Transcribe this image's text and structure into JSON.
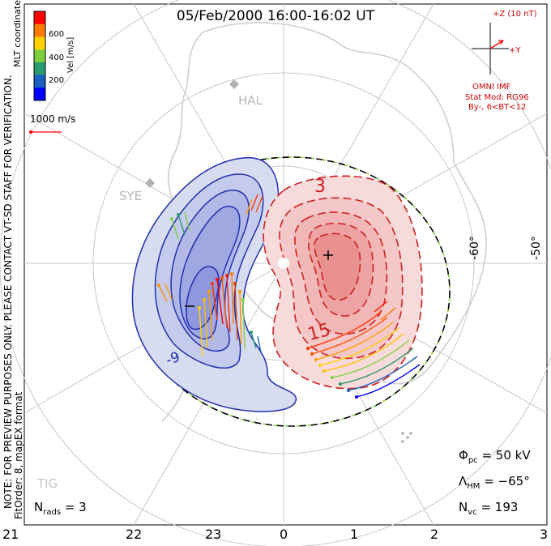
{
  "title": "05/Feb/2000 16:00-16:02 UT",
  "colorbar": {
    "label": "Vel [m/s]",
    "ticks": [
      "600",
      "400",
      "200"
    ],
    "colors": [
      "#ff0000",
      "#ff7a00",
      "#ffd000",
      "#7fd040",
      "#2a9a70",
      "#1a60c0",
      "#0000ff"
    ]
  },
  "coord_label": "MLT coordinates",
  "scale_vector": "1000 m/s",
  "notice": "NOTE: FOR PREVIEW PURPOSES ONLY. PLEASE CONTACT VT-SD STAFF FOR VERIFICATION.",
  "fit_info": "FitOrder: 8, mapEX format",
  "stations": [
    "HAL",
    "SYE",
    "TIG"
  ],
  "imf": {
    "z_label": "+Z (10 nT)",
    "y_label": "+Y",
    "source": "OMNI IMF",
    "model": "Stat Mod: RG96",
    "condition": "By-, 6<BT<12"
  },
  "lat_labels": [
    "-60°",
    "-50°"
  ],
  "mlt_labels": [
    "21",
    "22",
    "23",
    "0",
    "1",
    "2",
    "3"
  ],
  "contours": {
    "negative_label": "-9",
    "positive_labels": [
      "3",
      "15"
    ]
  },
  "stats": {
    "phi_label": "Φ",
    "phi_sub": "pc",
    "phi_value": "= 50 kV",
    "lambda_label": "Λ",
    "lambda_sub": "HM",
    "lambda_value": "= −65°",
    "nvc_label": "N",
    "nvc_sub": "vc",
    "nvc_value": "= 193",
    "nrads_label": "N",
    "nrads_sub": "rads",
    "nrads_value": "= 3"
  }
}
